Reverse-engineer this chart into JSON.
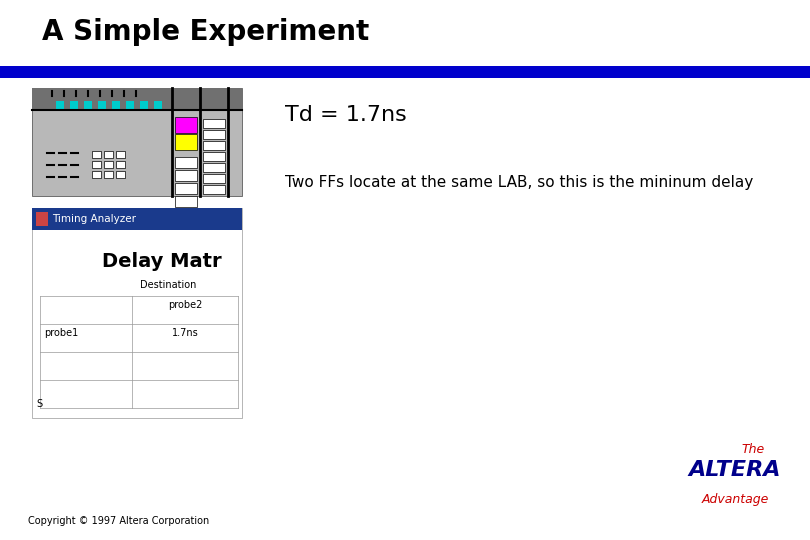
{
  "title": "A Simple Experiment",
  "title_color": "#000000",
  "title_fontsize": 20,
  "blue_bar_color": "#0000CC",
  "bg_color": "#ffffff",
  "td_text": "Td = 1.7ns",
  "td_fontsize": 16,
  "desc_text": "Two FFs locate at the same LAB, so this is the mininum delay",
  "desc_fontsize": 11,
  "copyright_text": "Copyright © 1997 Altera Corporation",
  "copyright_fontsize": 7,
  "timing_bar_color": "#1a3a8c"
}
